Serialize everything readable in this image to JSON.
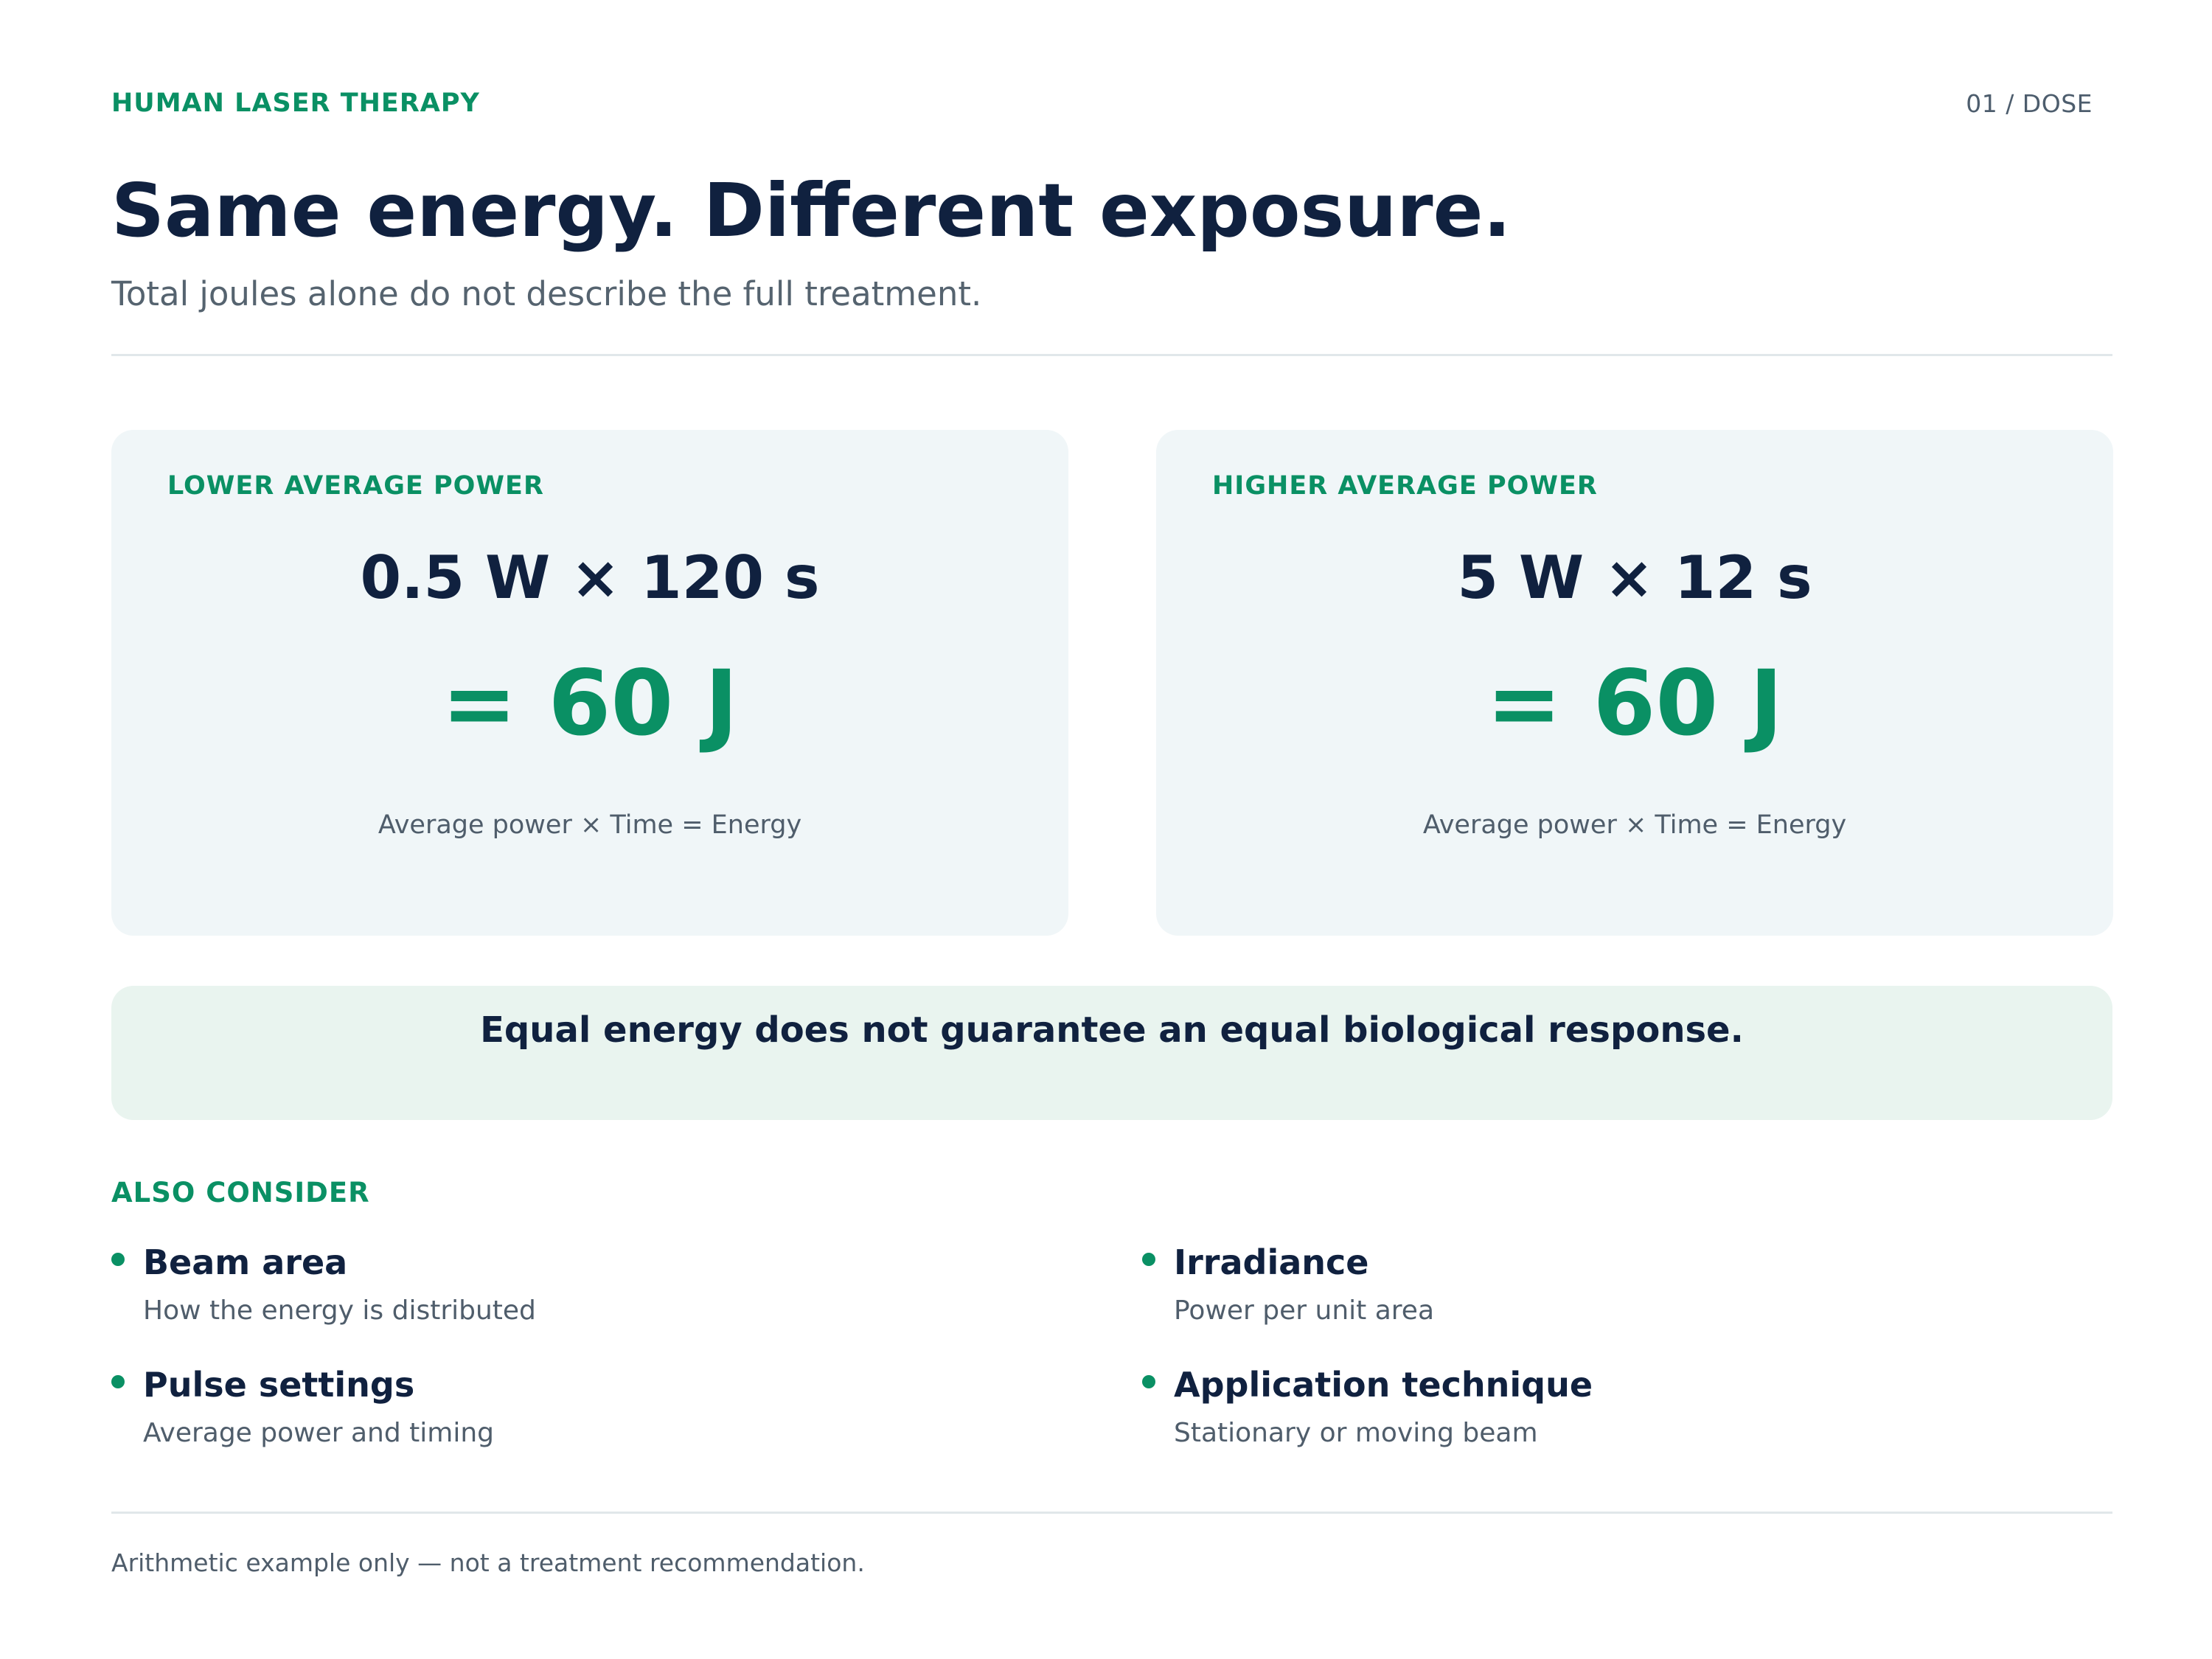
{
  "header": {
    "eyebrow": "HUMAN LASER THERAPY",
    "pager": "01 / DOSE",
    "title": "Same energy. Different exposure.",
    "subtitle": "Total joules alone do not describe the full treatment."
  },
  "cards": [
    {
      "label": "LOWER AVERAGE POWER",
      "formula": "0.5 W × 120 s",
      "result": "= 60 J",
      "caption": "Average power × Time = Energy"
    },
    {
      "label": "HIGHER AVERAGE POWER",
      "formula": "5 W × 12 s",
      "result": "= 60 J",
      "caption": "Average power × Time = Energy"
    }
  ],
  "callout": {
    "text": "Equal energy does not guarantee an equal biological response."
  },
  "consider": {
    "label": "ALSO CONSIDER",
    "items": [
      {
        "title": "Beam area",
        "desc": "How the energy is distributed"
      },
      {
        "title": "Irradiance",
        "desc": "Power per unit area"
      },
      {
        "title": "Pulse settings",
        "desc": "Average power and timing"
      },
      {
        "title": "Application technique",
        "desc": "Stationary or moving beam"
      }
    ]
  },
  "footer": {
    "note": "Arithmetic example only — not a treatment recommendation."
  },
  "colors": {
    "accent": "#0a9064",
    "ink": "#10213f",
    "muted": "#4f5d6b",
    "card_bg": "#f0f6f8",
    "callout_bg": "#e9f4ef"
  }
}
